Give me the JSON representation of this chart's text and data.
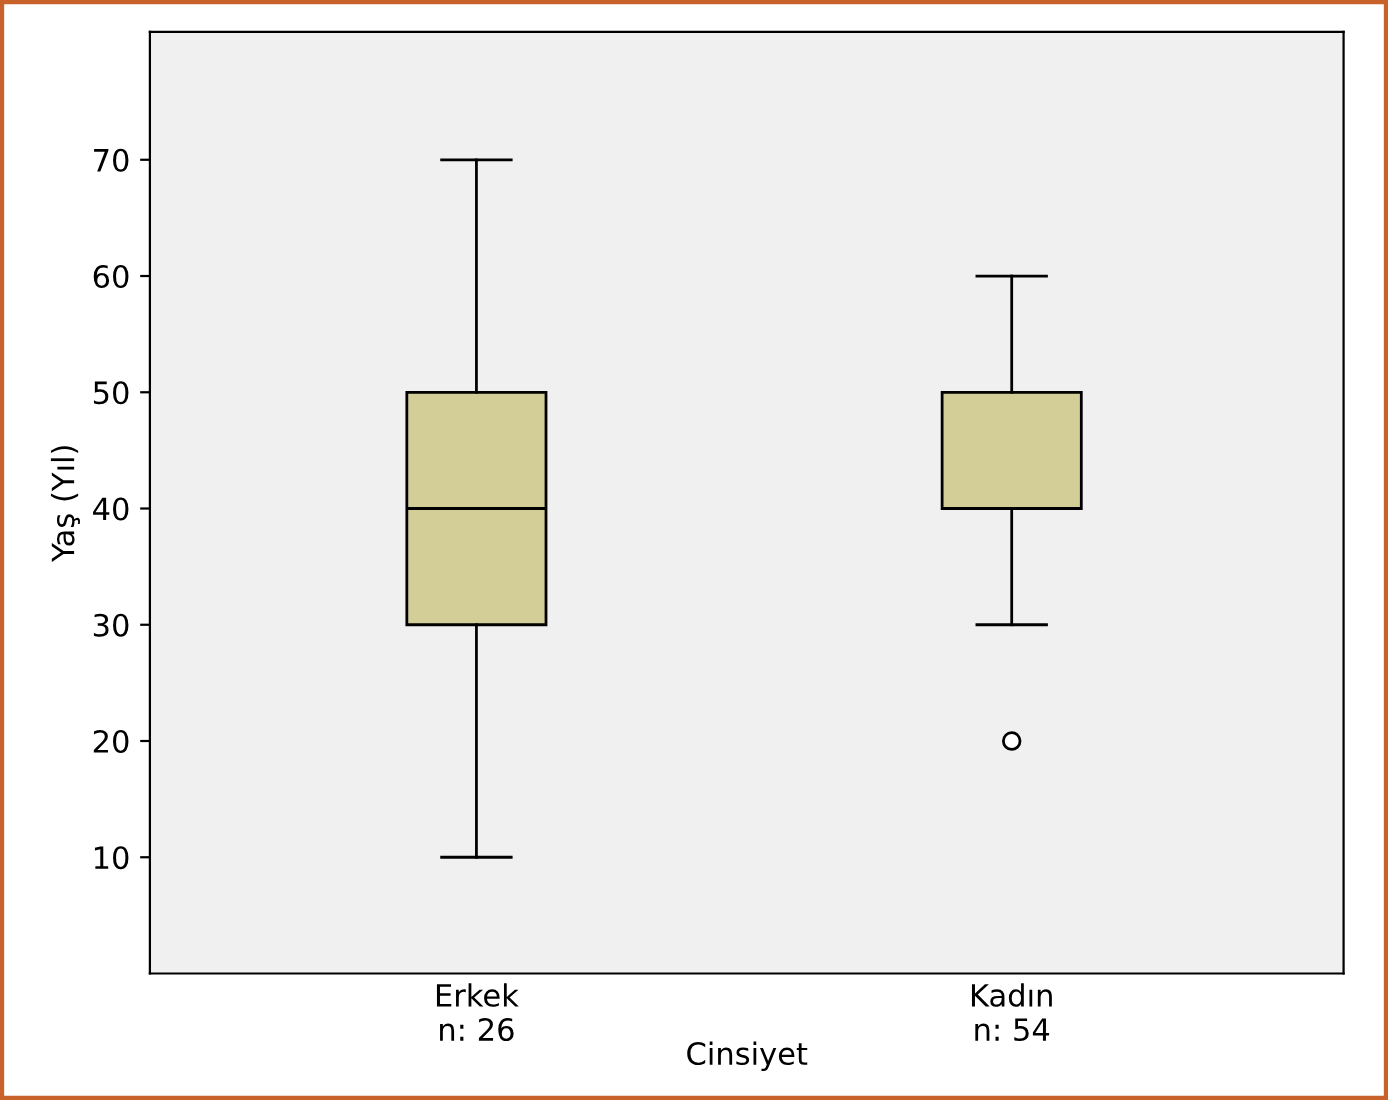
{
  "chart_data": {
    "type": "box",
    "xlabel": "Cinsiyet",
    "ylabel": "Yaş (Yıl)",
    "categories": [
      "Erkek\nn: 26",
      "Kadın\nn: 54"
    ],
    "boxes": [
      {
        "low": 10,
        "q1": 30,
        "median": 40,
        "q3": 50,
        "high": 70
      },
      {
        "low": 30,
        "q1": 40,
        "median": 40,
        "q3": 50,
        "high": 60,
        "outliers": [
          20
        ]
      }
    ],
    "color": "#d3ce97",
    "ylim": [
      0,
      81
    ],
    "yticks": [
      10,
      20,
      30,
      40,
      50,
      60,
      70
    ],
    "grid": false,
    "legend": false
  }
}
